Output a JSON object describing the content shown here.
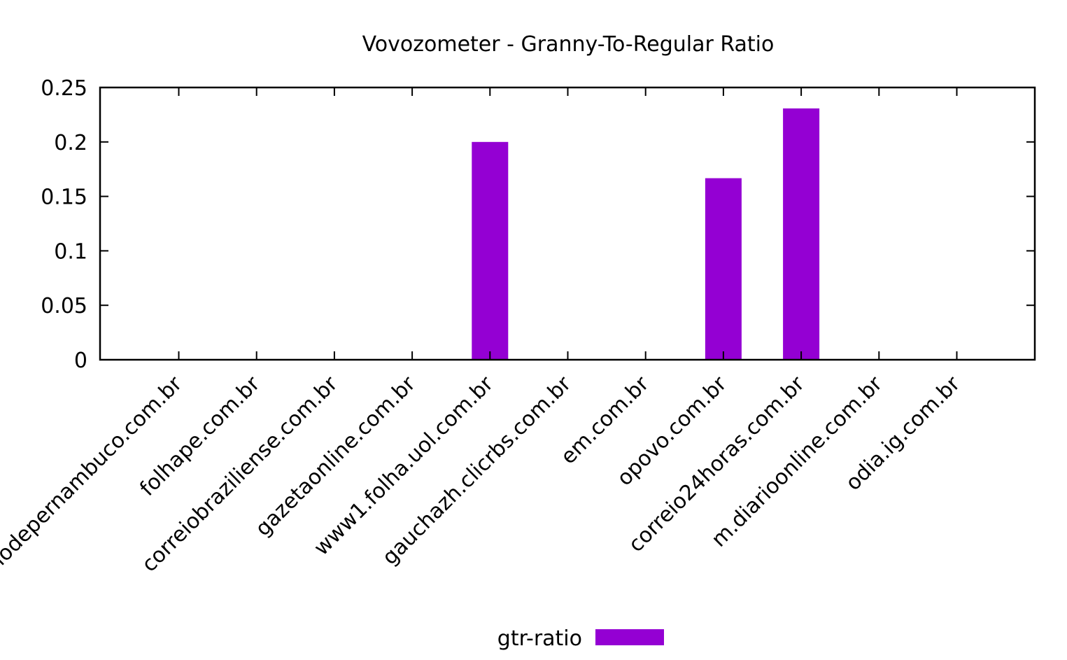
{
  "chart_data": {
    "type": "bar",
    "title": "Vovozometer - Granny-To-Regular Ratio",
    "xlabel": "",
    "ylabel": "",
    "categories": [
      "diariodepernambuco.com.br",
      "folhape.com.br",
      "correiobraziliense.com.br",
      "gazetaonline.com.br",
      "www1.folha.uol.com.br",
      "gauchazh.clicrbs.com.br",
      "em.com.br",
      "opovo.com.br",
      "correio24horas.com.br",
      "m.diarioonline.com.br",
      "odia.ig.com.br"
    ],
    "series": [
      {
        "name": "gtr-ratio",
        "color": "#9400d3",
        "values": [
          0,
          0,
          0,
          0,
          0.2,
          0,
          0,
          0.1667,
          0.2308,
          0,
          0
        ]
      }
    ],
    "ylim": [
      0,
      0.25
    ],
    "yticks": [
      "0",
      "0.05",
      "0.1",
      "0.15",
      "0.2",
      "0.25"
    ],
    "ytick_values": [
      0,
      0.05,
      0.1,
      0.15,
      0.2,
      0.25
    ],
    "grid": false,
    "legend_position": "bottom-center"
  }
}
